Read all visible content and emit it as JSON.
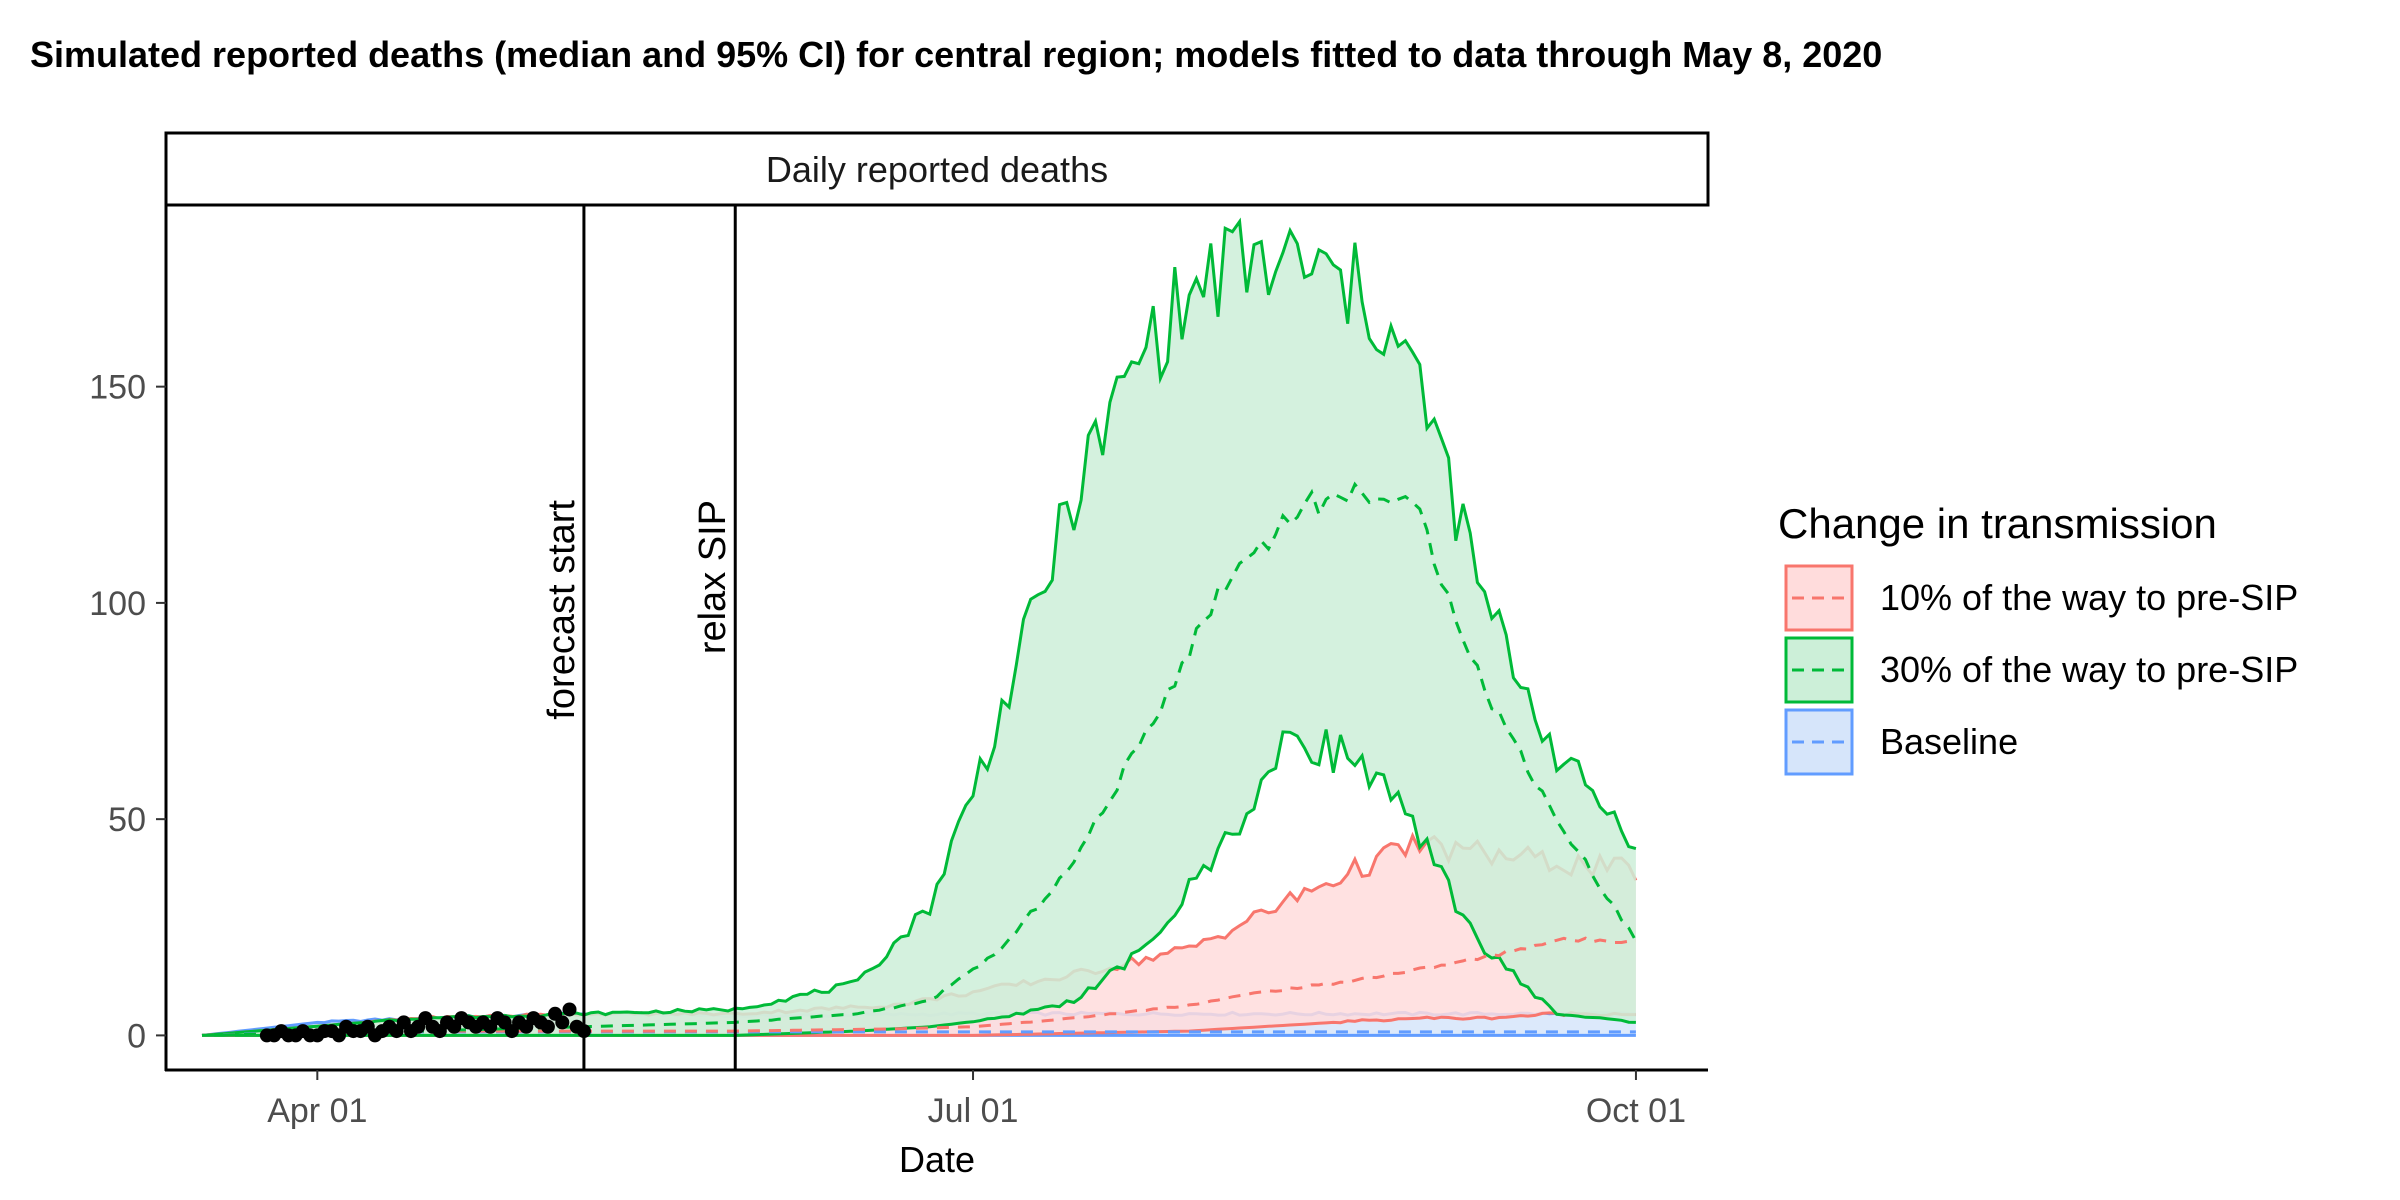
{
  "chart_data": {
    "type": "area",
    "title": "Simulated reported deaths (median and 95% CI) for central region; models fitted to data through May 8, 2020",
    "panel_title": "Daily reported deaths",
    "xlabel": "Date",
    "ylabel": "",
    "x_start": "2020-03-16",
    "x_ticks": [
      {
        "label": "Apr 01",
        "date": "2020-04-01"
      },
      {
        "label": "Jul 01",
        "date": "2020-07-01"
      },
      {
        "label": "Oct 01",
        "date": "2020-10-01"
      }
    ],
    "y_ticks": [
      0,
      50,
      100,
      150
    ],
    "xlim": [
      "2020-03-11",
      "2020-10-11"
    ],
    "ylim": [
      -8,
      192
    ],
    "vlines": [
      {
        "date": "2020-05-08",
        "label": "forecast start"
      },
      {
        "date": "2020-05-29",
        "label": "relax SIP"
      }
    ],
    "legend": {
      "title": "Change in transmission",
      "position": "right",
      "entries": [
        "10% of the way to pre-SIP",
        "30% of the way to pre-SIP",
        "Baseline"
      ]
    },
    "series": [
      {
        "name": "10% of the way to pre-SIP",
        "color": "#F8766D",
        "fill": "#FFDCDC",
        "dates": [
          "2020-03-16",
          "2020-04-15",
          "2020-05-08",
          "2020-05-29",
          "2020-06-20",
          "2020-07-01",
          "2020-07-15",
          "2020-07-31",
          "2020-08-10",
          "2020-08-20",
          "2020-08-31",
          "2020-09-10",
          "2020-09-20",
          "2020-10-01"
        ],
        "median": [
          0,
          1,
          1,
          1,
          1.5,
          2,
          4,
          7,
          10,
          12,
          15,
          18,
          22,
          22
        ],
        "lower": [
          0,
          0,
          0,
          0,
          0,
          0,
          0.5,
          1,
          2,
          3,
          4,
          4,
          5,
          5
        ],
        "upper": [
          0,
          4,
          5,
          5,
          7,
          10,
          14,
          20,
          28,
          36,
          44,
          42,
          40,
          38
        ]
      },
      {
        "name": "30% of the way to pre-SIP",
        "color": "#00BA38",
        "fill": "#CCEFD8",
        "dates": [
          "2020-03-16",
          "2020-04-15",
          "2020-05-08",
          "2020-05-29",
          "2020-06-15",
          "2020-06-25",
          "2020-07-05",
          "2020-07-15",
          "2020-07-25",
          "2020-08-05",
          "2020-08-15",
          "2020-08-25",
          "2020-09-01",
          "2020-09-10",
          "2020-09-20",
          "2020-10-01"
        ],
        "median": [
          0,
          1,
          2,
          3,
          5,
          8,
          20,
          40,
          70,
          105,
          122,
          126,
          120,
          80,
          50,
          22
        ],
        "lower": [
          0,
          0,
          0,
          0,
          1,
          2,
          4,
          8,
          20,
          45,
          70,
          62,
          45,
          20,
          5,
          3
        ],
        "upper": [
          0,
          4,
          5,
          6,
          12,
          30,
          75,
          125,
          160,
          178,
          178,
          170,
          150,
          100,
          65,
          45
        ]
      },
      {
        "name": "Baseline",
        "color": "#619CFF",
        "fill": "#D6E5FA",
        "dates": [
          "2020-03-16",
          "2020-04-01",
          "2020-04-15",
          "2020-05-08",
          "2020-06-01",
          "2020-07-01",
          "2020-08-01",
          "2020-09-01",
          "2020-10-01"
        ],
        "median": [
          0,
          0.8,
          0.8,
          0.8,
          0.8,
          0.8,
          0.8,
          0.8,
          0.8
        ],
        "lower": [
          0,
          0,
          0,
          0,
          0,
          0,
          0,
          0,
          0
        ],
        "upper": [
          0,
          3,
          4,
          5,
          4.5,
          5,
          5,
          5,
          5
        ]
      }
    ],
    "observed": {
      "name": "observed deaths",
      "dates": [
        "2020-03-25",
        "2020-03-26",
        "2020-03-27",
        "2020-03-28",
        "2020-03-29",
        "2020-03-30",
        "2020-03-31",
        "2020-04-01",
        "2020-04-02",
        "2020-04-03",
        "2020-04-04",
        "2020-04-05",
        "2020-04-06",
        "2020-04-07",
        "2020-04-08",
        "2020-04-09",
        "2020-04-10",
        "2020-04-11",
        "2020-04-12",
        "2020-04-13",
        "2020-04-14",
        "2020-04-15",
        "2020-04-16",
        "2020-04-17",
        "2020-04-18",
        "2020-04-19",
        "2020-04-20",
        "2020-04-21",
        "2020-04-22",
        "2020-04-23",
        "2020-04-24",
        "2020-04-25",
        "2020-04-26",
        "2020-04-27",
        "2020-04-28",
        "2020-04-29",
        "2020-04-30",
        "2020-05-01",
        "2020-05-02",
        "2020-05-03",
        "2020-05-04",
        "2020-05-05",
        "2020-05-06",
        "2020-05-07",
        "2020-05-08"
      ],
      "values": [
        0,
        0,
        1,
        0,
        0,
        1,
        0,
        0,
        1,
        1,
        0,
        2,
        1,
        1,
        2,
        0,
        1,
        2,
        1,
        3,
        1,
        2,
        4,
        2,
        1,
        3,
        2,
        4,
        3,
        2,
        3,
        2,
        4,
        3,
        1,
        3,
        2,
        4,
        3,
        2,
        5,
        3,
        6,
        2,
        1
      ]
    }
  }
}
